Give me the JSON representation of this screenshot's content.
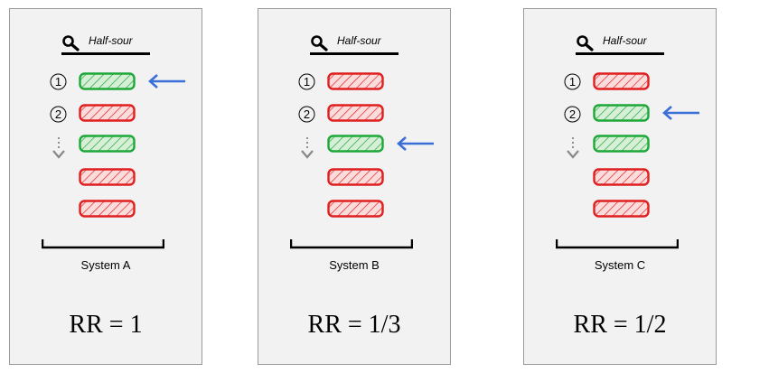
{
  "query": "Half-sour",
  "rank_markers": [
    "①",
    "②"
  ],
  "colors": {
    "relevant_stroke": "#1fa83a",
    "relevant_fill": "#d6efd6",
    "irrelevant_stroke": "#e02020",
    "irrelevant_fill": "#fbdcdc",
    "arrow": "#3a6fd8",
    "panel_background": "#f2f2f2"
  },
  "icons": {
    "search": "magnifier-icon",
    "result": "hatched-result-bar-icon",
    "more_results": "vertical-ellipsis-down-arrow-icon",
    "first_relevant": "left-arrow-icon",
    "results_span": "bracket-icon"
  },
  "systems": [
    {
      "label": "System A",
      "rr": "RR = 1",
      "results": [
        "relevant",
        "irrelevant",
        "relevant",
        "irrelevant",
        "irrelevant"
      ],
      "first_relevant_rank": 1
    },
    {
      "label": "System B",
      "rr": "RR = 1/3",
      "results": [
        "irrelevant",
        "irrelevant",
        "relevant",
        "irrelevant",
        "irrelevant"
      ],
      "first_relevant_rank": 3
    },
    {
      "label": "System C",
      "rr": "RR = 1/2",
      "results": [
        "irrelevant",
        "relevant",
        "relevant",
        "irrelevant",
        "irrelevant"
      ],
      "first_relevant_rank": 2
    }
  ]
}
